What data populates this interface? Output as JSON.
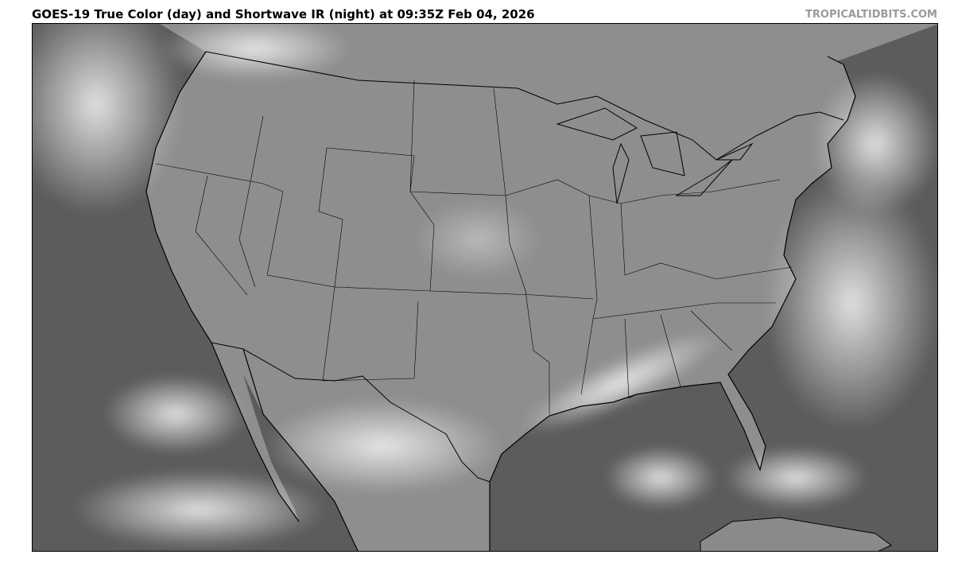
{
  "header": {
    "title": "GOES-19 True Color (day) and Shortwave IR (night) at 09:35Z Feb 04, 2026",
    "credit": "TROPICALTIDBITS.COM"
  },
  "map": {
    "product": "GOES-19 True Color (day) and Shortwave IR (night)",
    "region": "Continental United States",
    "colors": {
      "ocean": "#5a5a5a",
      "land": "#8c8c8c",
      "cloud": "#e6e6e6",
      "border": "#000000"
    }
  }
}
